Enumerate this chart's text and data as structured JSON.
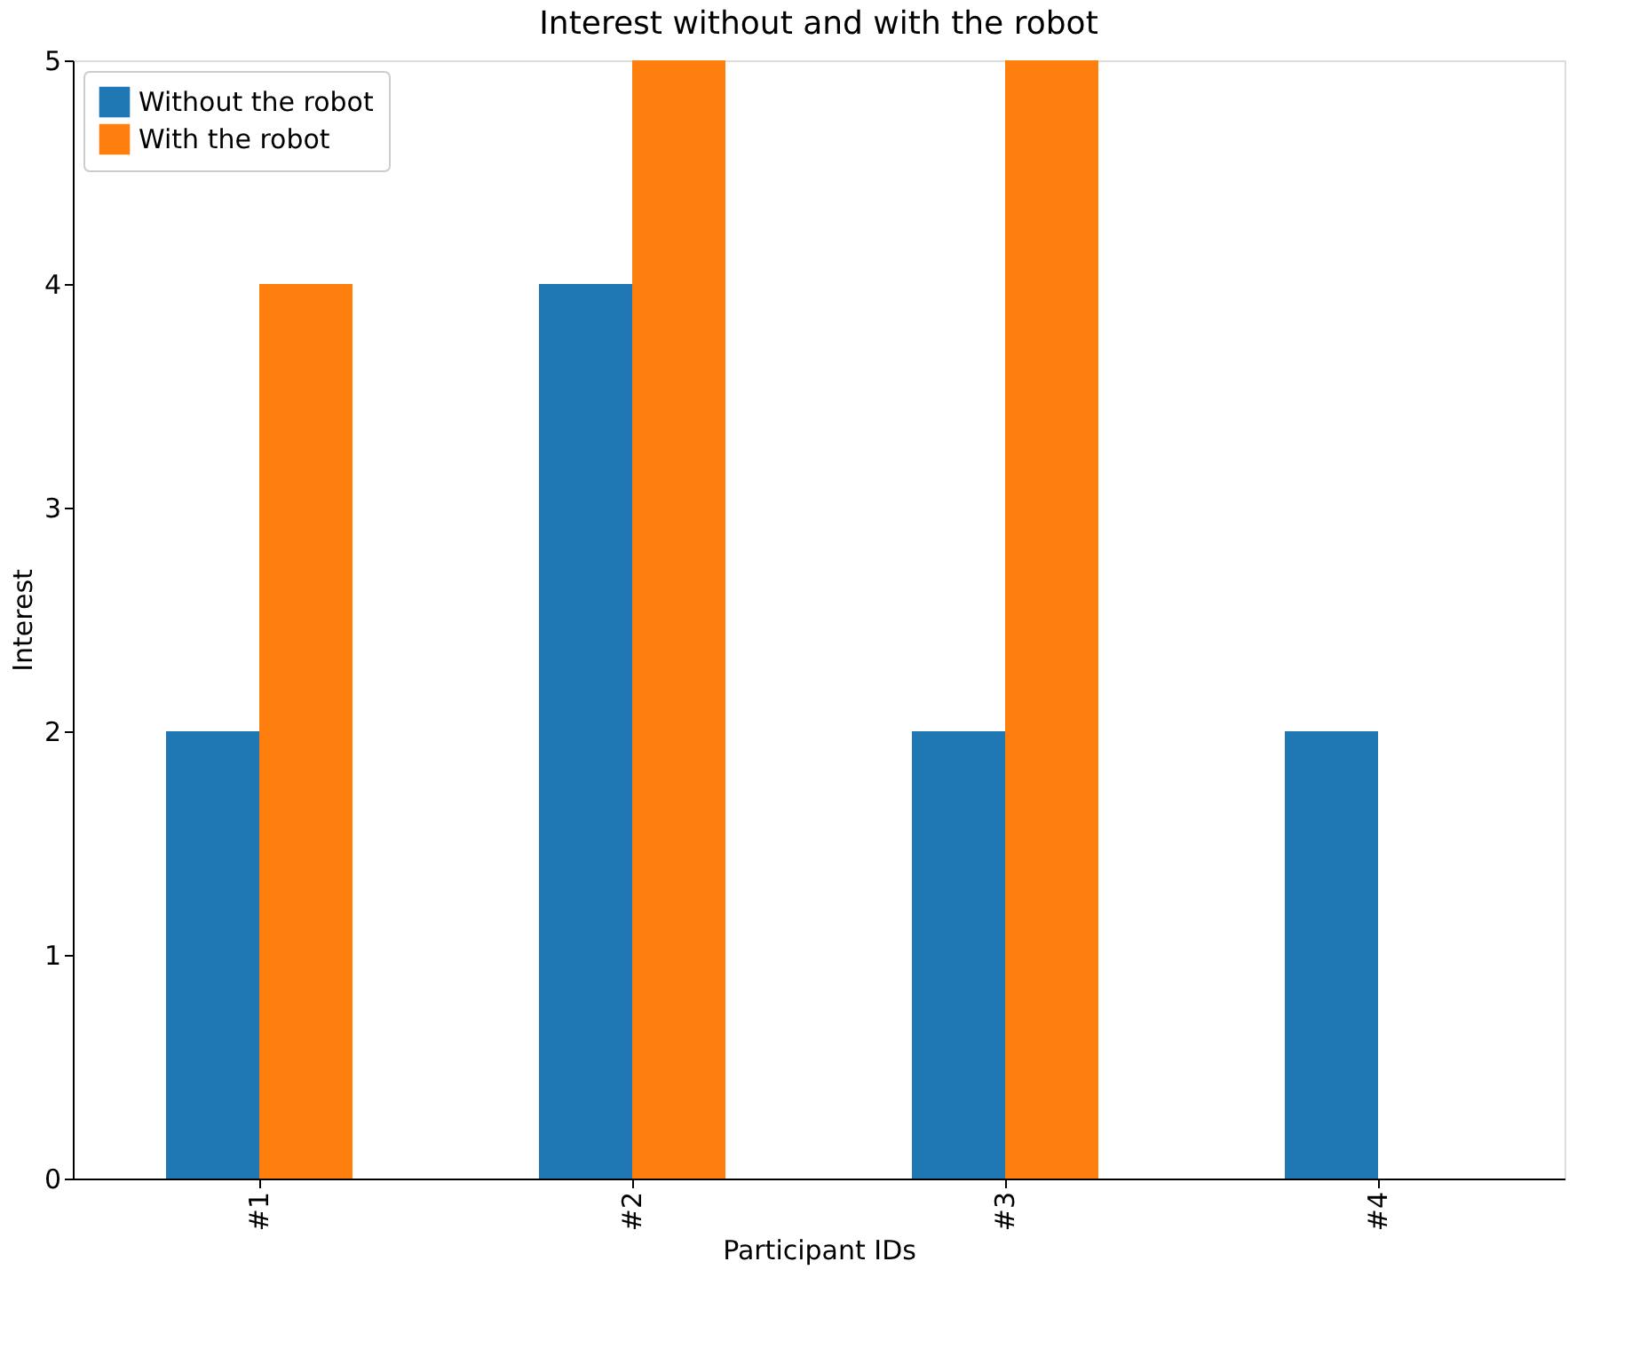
{
  "chart_data": {
    "type": "bar",
    "title": "Interest without and with the robot",
    "xlabel": "Participant IDs",
    "ylabel": "Interest",
    "categories": [
      "#1",
      "#2",
      "#3",
      "#4"
    ],
    "series": [
      {
        "name": "Without the robot",
        "color": "#1f77b4",
        "values": [
          2,
          4,
          2,
          2
        ]
      },
      {
        "name": "With the robot",
        "color": "#ff7f0e",
        "values": [
          4,
          5,
          5,
          0
        ]
      }
    ],
    "ylim": [
      0,
      5
    ],
    "yticks": [
      0,
      1,
      2,
      3,
      4,
      5
    ],
    "grid": false,
    "legend": "top left"
  }
}
